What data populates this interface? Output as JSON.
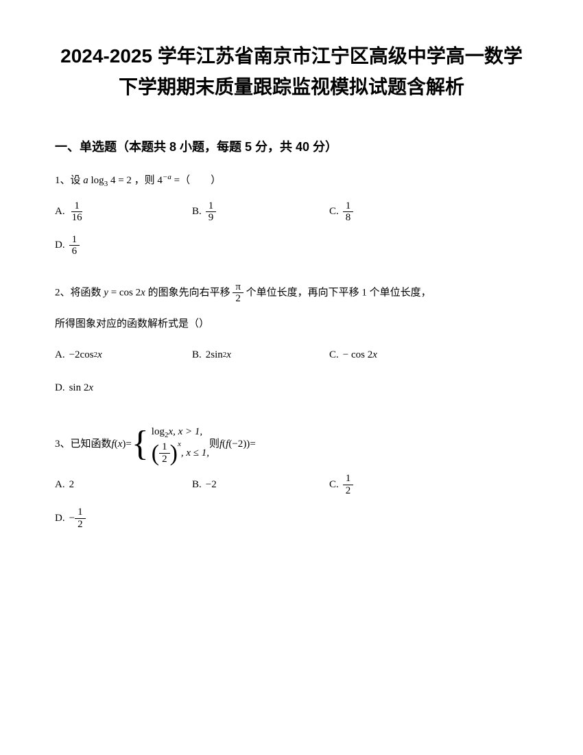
{
  "title": "2024-2025 学年江苏省南京市江宁区高级中学高一数学下学期期末质量跟踪监视模拟试题含解析",
  "section1": {
    "header": "一、单选题（本题共 8 小题，每题 5 分，共 40 分）",
    "q1": {
      "prefix": "1、设 ",
      "equation_left": "a",
      "log_base": "3",
      "log_arg": "4",
      "equals": "= 2",
      "middle": " ，则 ",
      "expr2_base": "4",
      "expr2_exp": "−a",
      "suffix": " =（　　）",
      "optA_label": "A. ",
      "optA_num": "1",
      "optA_den": "16",
      "optB_label": "B. ",
      "optB_num": "1",
      "optB_den": "9",
      "optC_label": "C. ",
      "optC_num": "1",
      "optC_den": "8",
      "optD_label": "D. ",
      "optD_num": "1",
      "optD_den": "6"
    },
    "q2": {
      "prefix": "2、将函数 ",
      "func": "y",
      "equals": " = cos 2",
      "var_x": "x",
      "mid1": " 的图象先向右平移 ",
      "frac_num": "π",
      "frac_den": "2",
      "mid2": " 个单位长度，再向下平移 1 个单位长度，",
      "line2": "所得图象对应的函数解析式是（）",
      "optA_label": "A. ",
      "optA_text": "−2cos",
      "optA_sup": "2",
      "optA_x": " x",
      "optB_label": "B. ",
      "optB_text": "2sin",
      "optB_sup": "2",
      "optB_x": " x",
      "optC_label": "C. ",
      "optC_text": "− cos 2",
      "optC_x": "x",
      "optD_label": "D. ",
      "optD_text": "sin 2",
      "optD_x": "x"
    },
    "q3": {
      "prefix": "3、已知函数 ",
      "fx": "f",
      "paren_x": "x",
      "eq": " = ",
      "piece1_text": "log",
      "piece1_base": "2",
      "piece1_var": "x",
      "piece1_cond": ", x > 1,",
      "piece2_num": "1",
      "piece2_den": "2",
      "piece2_exp": "x",
      "piece2_cond": ", x ≤ 1,",
      "then": " 则 ",
      "f_outer": "f",
      "f_inner": "f",
      "neg2": "−2",
      "suffix": " =",
      "optA_label": "A. ",
      "optA_text": "2",
      "optB_label": "B. ",
      "optB_text": "−2",
      "optC_label": "C. ",
      "optC_num": "1",
      "optC_den": "2",
      "optD_label": "D. ",
      "optD_neg": "−",
      "optD_num": "1",
      "optD_den": "2"
    }
  }
}
